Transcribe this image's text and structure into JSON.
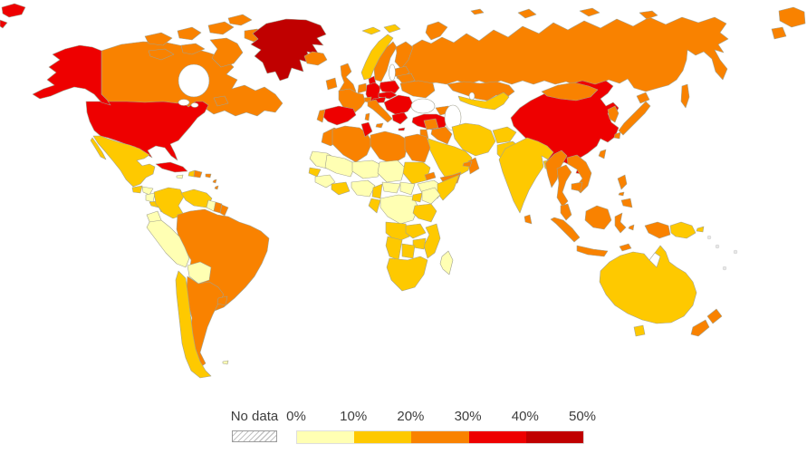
{
  "figure": {
    "type": "world-choropleth",
    "ocean_color": "#FFFFFF",
    "border_color": "#A3A391"
  },
  "legend": {
    "no_data_label": "No data",
    "no_data_fill": "#ececec",
    "ticks": [
      "0%",
      "10%",
      "20%",
      "30%",
      "40%",
      "50%"
    ],
    "buckets": [
      {
        "label": "0-10%",
        "color": "#FFFFB3"
      },
      {
        "label": "10-20%",
        "color": "#FEC900"
      },
      {
        "label": "20-30%",
        "color": "#F98200"
      },
      {
        "label": "30-40%",
        "color": "#EE0000"
      },
      {
        "label": "40-50%",
        "color": "#C00000"
      }
    ],
    "text_color": "#3D3D3D"
  },
  "chart_data": {
    "type": "choropleth",
    "unit": "percent",
    "scale_ticks": [
      0,
      10,
      20,
      30,
      40,
      50
    ],
    "no_data_label": "No data",
    "buckets": [
      "0-10%",
      "10-20%",
      "20-30%",
      "30-40%",
      "40-50%"
    ],
    "regions": {
      "greenland": 4,
      "chukotka-fragment": 3,
      "usa": 3,
      "alaska": 3,
      "cuba": 3,
      "spain": 3,
      "denmark": 3,
      "germany": 3,
      "poland": 3,
      "czechia-slovakia": 3,
      "austria": 3,
      "hungary-balkans": 3,
      "greece": 3,
      "turkey": 3,
      "tunisia": 3,
      "china": 3,
      "canada": 2,
      "canadian-arctic": 2,
      "newfoundland": 2,
      "iceland": 2,
      "ireland": 2,
      "uk": 2,
      "netherlands-belgium": 2,
      "switzerland": 2,
      "france": 2,
      "portugal": 2,
      "italy": 2,
      "sweden": 2,
      "finland": 2,
      "baltics": 2,
      "belarus": 2,
      "ukraine": 2,
      "russia": 2,
      "russia-east-wrap": 2,
      "arctic-russian-islands": 2,
      "kazakhstan": 2,
      "caucasus": 2,
      "syria": 2,
      "iraq": 2,
      "jordan-israel": 2,
      "yemen": 2,
      "oman": 2,
      "uae": 2,
      "morocco": 2,
      "algeria": 2,
      "libya": 2,
      "egypt": 2,
      "eritrea": 2,
      "mongolia": 2,
      "korea": 2,
      "japan": 2,
      "taiwan": 2,
      "myanmar": 2,
      "thailand": 2,
      "vietnam-laos": 2,
      "cambodia": 2,
      "malaysia": 2,
      "indonesia": 2,
      "philippines": 2,
      "sri-lanka": 2,
      "new-zealand": 2,
      "brazil": 2,
      "argentina": 2,
      "paraguay": 2,
      "uruguay": 2,
      "suriname": 2,
      "french-guiana": 2,
      "dominican-republic": 2,
      "puerto-rico": 2,
      "lesser-antilles": 2,
      "mexico": 1,
      "guatemala": 1,
      "costa-rica": 1,
      "panama": 1,
      "haiti": 1,
      "colombia": 1,
      "venezuela": 1,
      "chile": 1,
      "norway": 1,
      "svalbard": 1,
      "azerbaijan": 1,
      "iran": 1,
      "afghanistan": 1,
      "pakistan": 1,
      "central-asia": 1,
      "saudi-arabia": 1,
      "india": 1,
      "bangladesh": 1,
      "senegal": 1,
      "ivory-ghana": 1,
      "cameroon": 1,
      "sudan": 1,
      "somalia": 1,
      "uganda": 1,
      "tanzania": 1,
      "angola": 1,
      "zambia": 1,
      "zimbabwe": 1,
      "mozambique": 1,
      "botswana": 1,
      "namibia": 1,
      "south-africa": 1,
      "gabon-congo": 1,
      "australia": 1,
      "tasmania": 1,
      "papua-new-guinea": 1,
      "honduras": 0,
      "nicaragua": 0,
      "jamaica": 0,
      "guyana": 0,
      "ecuador": 0,
      "peru": 0,
      "bolivia": 0,
      "falkland-islands": 0,
      "western-sahara-mauritania": 0,
      "mali": 0,
      "niger": 0,
      "chad": 0,
      "nigeria": 0,
      "guinea-sierra": 0,
      "car": 0,
      "south-sudan": 0,
      "drc": 0,
      "ethiopia": 0,
      "kenya": 0,
      "madagascar": 0,
      "pacific-islands": -1
    }
  }
}
